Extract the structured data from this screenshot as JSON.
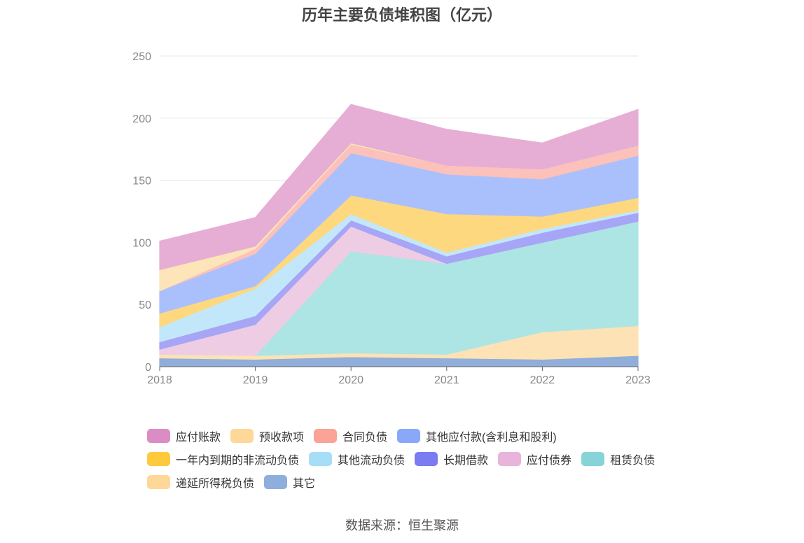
{
  "title": "历年主要负债堆积图（亿元）",
  "source": "数据来源：恒生聚源",
  "colors": {
    "其它": "#90aed9",
    "递延所得税负债": "#fde2b5",
    "租赁负债": "#ade4e4",
    "应付债券": "#eecde4",
    "长期借款": "#a7a5f5",
    "其他流动负债": "#c3e7fa",
    "一年内到期的非流动负债": "#fed87e",
    "其他应付款(含利息和股利)": "#aac0fd",
    "合同负债": "#fbc1ba",
    "预收款项": "#fde4b9",
    "应付账款": "#e6aed4"
  },
  "legend_colors": {
    "应付账款": "#dc8cc4",
    "预收款项": "#fed898",
    "合同负债": "#faa396",
    "其他应付款(含利息和股利)": "#89a8f9",
    "一年内到期的非流动负债": "#ffc93d",
    "其他流动负债": "#a6def8",
    "长期借款": "#7b7bf2",
    "应付债券": "#e8b4db",
    "租赁负债": "#86d4d8",
    "递延所得税负债": "#fed898",
    "其它": "#8eafdc"
  },
  "legend_rows": [
    [
      "应付账款",
      "预收款项",
      "合同负债",
      "其他应付款(含利息和股利)"
    ],
    [
      "一年内到期的非流动负债",
      "其他流动负债",
      "长期借款",
      "应付债券",
      "租赁负债"
    ],
    [
      "递延所得税负债",
      "其它"
    ]
  ],
  "chart_data": {
    "type": "area",
    "stacked": true,
    "title": "历年主要负债堆积图（亿元）",
    "x": [
      "2018",
      "2019",
      "2020",
      "2021",
      "2022",
      "2023"
    ],
    "ylim": [
      0,
      250
    ],
    "yticks": [
      0,
      50,
      100,
      150,
      200,
      250
    ],
    "grid": true,
    "legend_position": "bottom",
    "series": [
      {
        "name": "其它",
        "values": [
          7,
          6,
          8,
          7,
          6,
          9
        ]
      },
      {
        "name": "递延所得税负债",
        "values": [
          3,
          3,
          3,
          3,
          22,
          24
        ]
      },
      {
        "name": "租赁负债",
        "values": [
          0,
          0,
          82,
          73,
          72,
          84
        ]
      },
      {
        "name": "应付债券",
        "values": [
          4,
          25,
          20,
          0,
          0,
          0
        ]
      },
      {
        "name": "长期借款",
        "values": [
          6,
          7,
          5,
          6,
          8,
          7
        ]
      },
      {
        "name": "其他流动负债",
        "values": [
          12,
          22,
          5,
          3,
          3,
          2
        ]
      },
      {
        "name": "一年内到期的非流动负债",
        "values": [
          11,
          2,
          15,
          31,
          10,
          10
        ]
      },
      {
        "name": "其他应付款(含利息和股利)",
        "values": [
          18,
          26,
          34,
          32,
          30,
          34
        ]
      },
      {
        "name": "合同负债",
        "values": [
          0,
          4,
          7,
          7,
          8,
          8
        ]
      },
      {
        "name": "预收款项",
        "values": [
          17,
          2,
          1,
          0,
          0,
          0
        ]
      },
      {
        "name": "应付账款",
        "values": [
          23,
          23,
          31,
          29,
          21,
          29
        ]
      }
    ]
  }
}
